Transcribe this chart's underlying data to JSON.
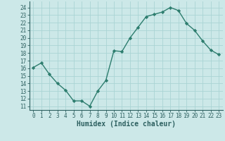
{
  "x": [
    0,
    1,
    2,
    3,
    4,
    5,
    6,
    7,
    8,
    9,
    10,
    11,
    12,
    13,
    14,
    15,
    16,
    17,
    18,
    19,
    20,
    21,
    22,
    23
  ],
  "y": [
    16.1,
    16.7,
    15.2,
    14.0,
    13.1,
    11.7,
    11.7,
    11.0,
    13.0,
    14.4,
    18.3,
    18.2,
    20.0,
    21.4,
    22.8,
    23.1,
    23.4,
    24.0,
    23.6,
    21.9,
    21.0,
    19.6,
    18.4,
    17.8
  ],
  "line_color": "#2d7d6e",
  "marker": "D",
  "marker_size": 2.2,
  "bg_color": "#cce8e8",
  "grid_color": "#aad4d4",
  "xlabel": "Humidex (Indice chaleur)",
  "ylabel_ticks": [
    11,
    12,
    13,
    14,
    15,
    16,
    17,
    18,
    19,
    20,
    21,
    22,
    23,
    24
  ],
  "ylim": [
    10.5,
    24.8
  ],
  "xlim": [
    -0.5,
    23.5
  ],
  "xtick_labels": [
    "0",
    "1",
    "2",
    "3",
    "4",
    "5",
    "6",
    "7",
    "8",
    "9",
    "10",
    "11",
    "12",
    "13",
    "14",
    "15",
    "16",
    "17",
    "18",
    "19",
    "20",
    "21",
    "22",
    "23"
  ],
  "line_width": 1.0,
  "marker_color": "#2d7d6e",
  "tick_color": "#2d6060",
  "label_color": "#2d6060",
  "spine_color": "#2d6060"
}
